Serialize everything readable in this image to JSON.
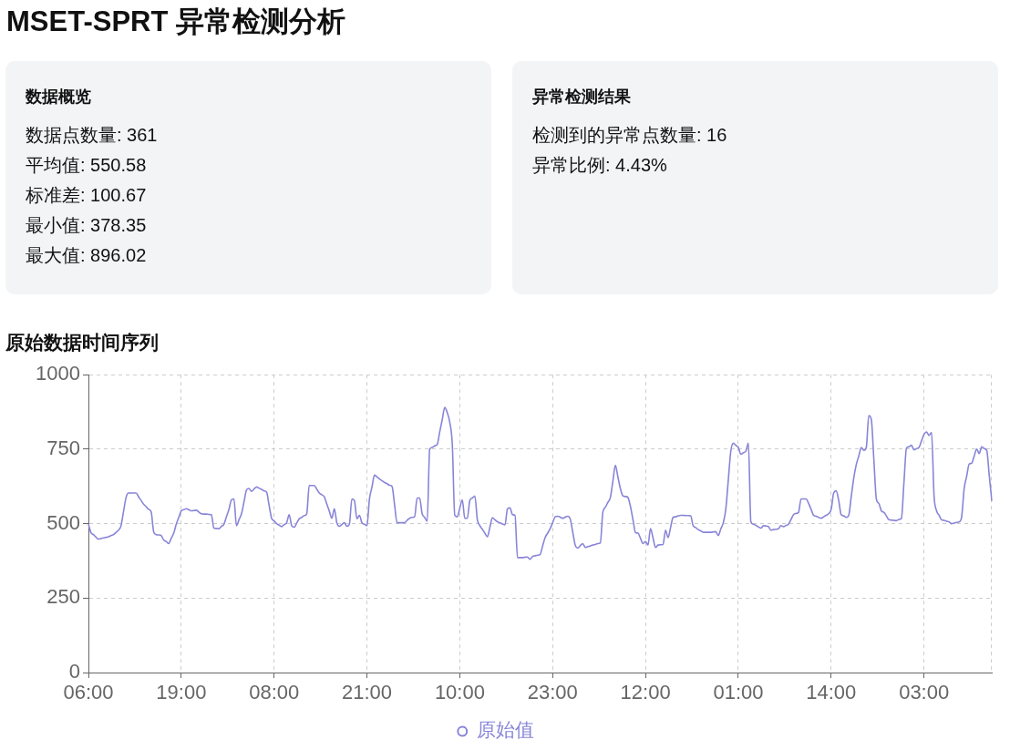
{
  "chart_data": [
    {
      "type": "other",
      "title": "MSET-SPRT 异常检测分析"
    },
    {
      "type": "other",
      "title": "数据概览",
      "annotations": [
        "数据点数量: 361",
        "平均值: 550.58",
        "标准差: 100.67",
        "最小值: 378.35",
        "最大值: 896.02"
      ]
    },
    {
      "type": "other",
      "title": "异常检测结果",
      "annotations": [
        "检测到的异常点数量: 16",
        "异常比例: 4.43%"
      ]
    },
    {
      "type": "line",
      "title": "原始数据时间序列",
      "categories": [
        "06:00",
        null,
        null,
        null,
        null,
        null,
        null,
        null,
        null,
        null,
        null,
        null,
        null,
        null,
        null,
        null,
        null,
        null,
        null,
        null,
        null,
        null,
        null,
        null,
        null,
        null,
        null,
        null,
        null,
        null,
        null,
        null,
        null,
        null,
        null,
        null,
        null,
        "19:00",
        null,
        null,
        null,
        null,
        null,
        null,
        null,
        null,
        null,
        null,
        null,
        null,
        null,
        null,
        null,
        null,
        null,
        null,
        null,
        null,
        null,
        null,
        null,
        null,
        null,
        null,
        null,
        null,
        null,
        null,
        null,
        null,
        null,
        null,
        null,
        null,
        "08:00",
        null,
        null,
        null,
        null,
        null,
        null,
        null,
        null,
        null,
        null,
        null,
        null,
        null,
        null,
        null,
        null,
        null,
        null,
        null,
        null,
        null,
        null,
        null,
        null,
        null,
        null,
        null,
        null,
        null,
        null,
        null,
        null,
        null,
        null,
        null,
        null,
        "21:00",
        null,
        null,
        null,
        null,
        null,
        null,
        null,
        null,
        null,
        null,
        null,
        null,
        null,
        null,
        null,
        null,
        null,
        null,
        null,
        null,
        null,
        null,
        null,
        null,
        null,
        null,
        null,
        null,
        null,
        null,
        null,
        null,
        null,
        null,
        null,
        null,
        "10:00",
        null,
        null,
        null,
        null,
        null,
        null,
        null,
        null,
        null,
        null,
        null,
        null,
        null,
        null,
        null,
        null,
        null,
        null,
        null,
        null,
        null,
        null,
        null,
        null,
        null,
        null,
        null,
        null,
        null,
        null,
        null,
        null,
        null,
        null,
        null,
        null,
        "23:00",
        null,
        null,
        null,
        null,
        null,
        null,
        null,
        null,
        null,
        null,
        null,
        null,
        null,
        null,
        null,
        null,
        null,
        null,
        null,
        null,
        null,
        null,
        null,
        null,
        null,
        null,
        null,
        null,
        null,
        null,
        null,
        null,
        null,
        null,
        null,
        null,
        "12:00",
        null,
        null,
        null,
        null,
        null,
        null,
        null,
        null,
        null,
        null,
        null,
        null,
        null,
        null,
        null,
        null,
        null,
        null,
        null,
        null,
        null,
        null,
        null,
        null,
        null,
        null,
        null,
        null,
        null,
        null,
        null,
        null,
        null,
        null,
        null,
        null,
        "01:00",
        null,
        null,
        null,
        null,
        null,
        null,
        null,
        null,
        null,
        null,
        null,
        null,
        null,
        null,
        null,
        null,
        null,
        null,
        null,
        null,
        null,
        null,
        null,
        null,
        null,
        null,
        null,
        null,
        null,
        null,
        null,
        null,
        null,
        null,
        null,
        null,
        "14:00",
        null,
        null,
        null,
        null,
        null,
        null,
        null,
        null,
        null,
        null,
        null,
        null,
        null,
        null,
        null,
        null,
        null,
        null,
        null,
        null,
        null,
        null,
        null,
        null,
        null,
        null,
        null,
        null,
        null,
        null,
        null,
        null,
        null,
        null,
        null,
        null,
        "03:00",
        null,
        null,
        null,
        null,
        null,
        null,
        null,
        null,
        null,
        null,
        null,
        null,
        null,
        null,
        null,
        null,
        null,
        null,
        null,
        null,
        null,
        null,
        null,
        null,
        null,
        null,
        null
      ],
      "series": [
        {
          "name": "原始值",
          "color": "#8884d8",
          "values": [
            498,
            470,
            463,
            455,
            448,
            450,
            452,
            454,
            456,
            460,
            463,
            471,
            478,
            493,
            541,
            588,
            603,
            603,
            603,
            603,
            590,
            578,
            565,
            557,
            548,
            540,
            473,
            463,
            462,
            460,
            445,
            440,
            433,
            451,
            468,
            498,
            521,
            543,
            547,
            550,
            547,
            543,
            544,
            545,
            539,
            533,
            532,
            532,
            531,
            530,
            485,
            484,
            483,
            491,
            498,
            523,
            548,
            580,
            583,
            493,
            513,
            533,
            573,
            613,
            618,
            608,
            616,
            623,
            619,
            615,
            610,
            606,
            562,
            518,
            509,
            500,
            495,
            490,
            497,
            503,
            530,
            493,
            488,
            502,
            516,
            521,
            527,
            533,
            628,
            628,
            628,
            616,
            603,
            597,
            590,
            566,
            542,
            518,
            550,
            503,
            491,
            497,
            503,
            491,
            498,
            583,
            578,
            516,
            528,
            503,
            498,
            493,
            583,
            623,
            663,
            657,
            650,
            644,
            638,
            634,
            629,
            625,
            564,
            503,
            503,
            503,
            503,
            511,
            518,
            521,
            523,
            586,
            586,
            533,
            521,
            508,
            750,
            756,
            761,
            766,
            808,
            849,
            890,
            873,
            840,
            768,
            528,
            523,
            552,
            580,
            518,
            518,
            578,
            586,
            593,
            513,
            493,
            481,
            468,
            456,
            488,
            520,
            513,
            506,
            503,
            499,
            496,
            550,
            553,
            530,
            528,
            386,
            386,
            386,
            387,
            388,
            380,
            390,
            392,
            394,
            396,
            425,
            453,
            468,
            483,
            503,
            523,
            525,
            522,
            518,
            522,
            525,
            516,
            472,
            428,
            418,
            426,
            433,
            420,
            423,
            425,
            428,
            430,
            433,
            435,
            538,
            555,
            571,
            588,
            642,
            696,
            657,
            618,
            593,
            591,
            588,
            558,
            514,
            470,
            468,
            451,
            433,
            440,
            428,
            483,
            452,
            420,
            428,
            429,
            430,
            478,
            453,
            487,
            521,
            523,
            526,
            528,
            528,
            527,
            527,
            526,
            493,
            487,
            480,
            476,
            471,
            471,
            471,
            471,
            472,
            473,
            460,
            482,
            503,
            548,
            646,
            743,
            770,
            763,
            756,
            733,
            738,
            743,
            770,
            506,
            498,
            494,
            489,
            485,
            493,
            492,
            490,
            478,
            480,
            481,
            483,
            493,
            490,
            494,
            498,
            514,
            530,
            534,
            538,
            583,
            583,
            583,
            568,
            548,
            528,
            525,
            521,
            518,
            523,
            528,
            533,
            548,
            603,
            610,
            578,
            530,
            526,
            521,
            528,
            591,
            653,
            698,
            727,
            756,
            746,
            756,
            863,
            850,
            717,
            583,
            568,
            543,
            538,
            526,
            513,
            512,
            511,
            510,
            514,
            518,
            638,
            753,
            758,
            763,
            748,
            752,
            756,
            778,
            800,
            808,
            796,
            806,
            593,
            543,
            528,
            513,
            511,
            508,
            506,
            500,
            502,
            504,
            506,
            523,
            618,
            659,
            700,
            703,
            727,
            750,
            735,
            758,
            752,
            746,
            662,
            578
          ]
        }
      ],
      "ylim": [
        0,
        1000
      ],
      "yticks": [
        0,
        250,
        500,
        750,
        1000
      ],
      "grid": true,
      "legend": "bottom",
      "marker": "none"
    }
  ]
}
